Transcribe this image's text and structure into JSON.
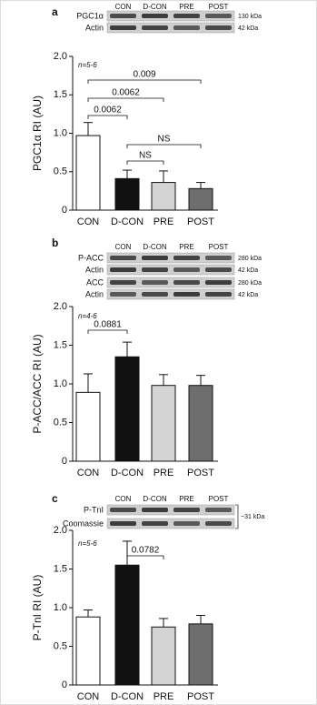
{
  "chart_data": [
    {
      "type": "bar",
      "panel": "a",
      "blot": {
        "lanes": [
          "CON",
          "D-CON",
          "PRE",
          "POST"
        ],
        "rows": [
          {
            "label": "PGC1α",
            "kda": "130 kDa"
          },
          {
            "label": "Actin",
            "kda": "42 kDa"
          }
        ]
      },
      "n_label": "n=5-6",
      "ylabel": "PGC1α RI (AU)",
      "categories": [
        "CON",
        "D-CON",
        "PRE",
        "POST"
      ],
      "values": [
        0.97,
        0.41,
        0.36,
        0.28
      ],
      "errors": [
        0.17,
        0.11,
        0.15,
        0.08
      ],
      "colors": [
        "#ffffff",
        "#111111",
        "#d4d4d4",
        "#6e6e6e"
      ],
      "ylim": [
        0,
        2
      ],
      "yticks": [
        0,
        0.5,
        {
          "value": 1,
          "label": "1.0"
        },
        1.5,
        {
          "value": 2,
          "label": "2.0"
        }
      ],
      "annotations": [
        {
          "text": "0.009",
          "between": [
            "CON",
            "POST"
          ]
        },
        {
          "text": "0.0062",
          "between": [
            "CON",
            "PRE"
          ]
        },
        {
          "text": "0.0062",
          "between": [
            "CON",
            "D-CON"
          ]
        },
        {
          "text": "NS",
          "between": [
            "D-CON",
            "POST"
          ]
        },
        {
          "text": "NS",
          "between": [
            "D-CON",
            "PRE"
          ]
        }
      ]
    },
    {
      "type": "bar",
      "panel": "b",
      "blot": {
        "lanes": [
          "CON",
          "D-CON",
          "PRE",
          "POST"
        ],
        "rows": [
          {
            "label": "P-ACC",
            "kda": "280 kDa"
          },
          {
            "label": "Actin",
            "kda": "42 kDa"
          },
          {
            "label": "ACC",
            "kda": "280 kDa"
          },
          {
            "label": "Actin",
            "kda": "42 kDa"
          }
        ]
      },
      "n_label": "n=4-6",
      "ylabel": "P-ACC/ACC RI (AU)",
      "categories": [
        "CON",
        "D-CON",
        "PRE",
        "POST"
      ],
      "values": [
        0.89,
        1.35,
        0.98,
        0.98
      ],
      "errors": [
        0.24,
        0.19,
        0.14,
        0.13
      ],
      "colors": [
        "#ffffff",
        "#111111",
        "#d4d4d4",
        "#6e6e6e"
      ],
      "ylim": [
        0,
        2
      ],
      "yticks": [
        0,
        0.5,
        {
          "value": 1,
          "label": "1.0"
        },
        1.5,
        {
          "value": 2,
          "label": "2.0"
        }
      ],
      "annotations": [
        {
          "text": "0.0881",
          "between": [
            "CON",
            "D-CON"
          ]
        }
      ]
    },
    {
      "type": "bar",
      "panel": "c",
      "blot": {
        "lanes": [
          "CON",
          "D-CON",
          "PRE",
          "POST"
        ],
        "rows": [
          {
            "label": "P-TnI"
          },
          {
            "label": "Coomassie"
          }
        ],
        "kda_note": "~31 kDa"
      },
      "n_label": "n=5-6",
      "ylabel": "P-TnI RI (AU)",
      "categories": [
        "CON",
        "D-CON",
        "PRE",
        "POST"
      ],
      "values": [
        0.88,
        1.55,
        0.75,
        0.79
      ],
      "errors": [
        0.09,
        0.31,
        0.11,
        0.11
      ],
      "colors": [
        "#ffffff",
        "#111111",
        "#d4d4d4",
        "#6e6e6e"
      ],
      "ylim": [
        0,
        2
      ],
      "yticks": [
        0,
        0.5,
        {
          "value": 1,
          "label": "1.0"
        },
        1.5,
        {
          "value": 2,
          "label": "2.0"
        }
      ],
      "annotations": [
        {
          "text": "0.0782",
          "between": [
            "D-CON",
            "PRE"
          ]
        }
      ]
    }
  ]
}
